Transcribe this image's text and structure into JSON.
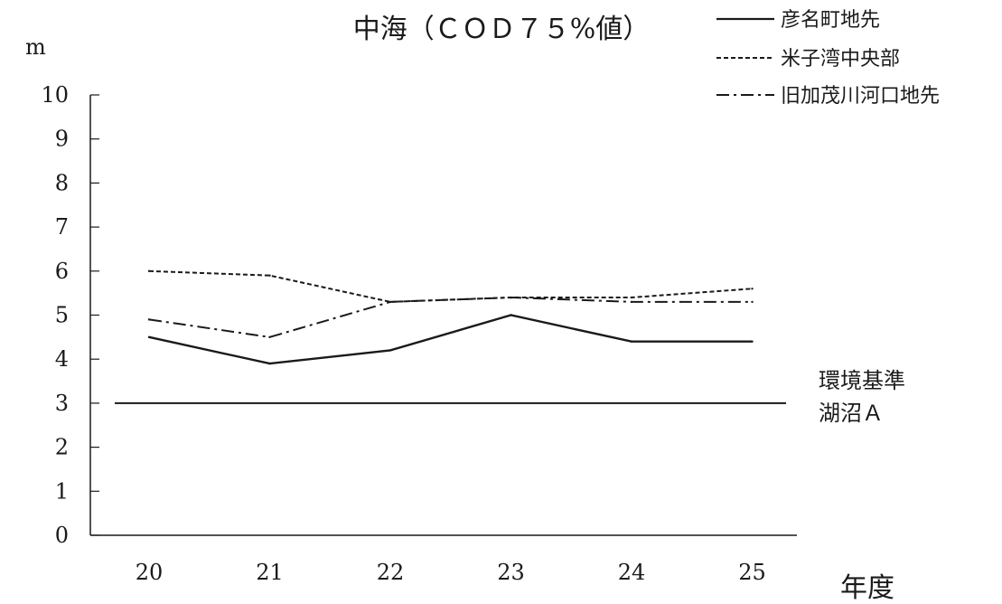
{
  "chart_data": {
    "type": "line",
    "title": "中海（ＣＯＤ７５%値）",
    "ylabel": "m",
    "xlabel": "年度",
    "categories": [
      "20",
      "21",
      "22",
      "23",
      "24",
      "25"
    ],
    "ylim": [
      0,
      10
    ],
    "yticks": [
      "0",
      "1",
      "2",
      "3",
      "4",
      "5",
      "6",
      "7",
      "8",
      "9",
      "10"
    ],
    "grid": false,
    "legend_position": "top-right",
    "series": [
      {
        "name": "彦名町地先",
        "values": [
          4.5,
          3.9,
          4.2,
          5.0,
          4.4,
          4.4
        ],
        "style": "solid"
      },
      {
        "name": "米子湾中央部",
        "values": [
          6.0,
          5.9,
          5.3,
          5.4,
          5.4,
          5.6
        ],
        "style": "dashed"
      },
      {
        "name": "旧加茂川河口地先",
        "values": [
          4.9,
          4.5,
          5.3,
          5.4,
          5.3,
          5.3
        ],
        "style": "dashdot"
      }
    ],
    "reference_line": {
      "value": 3,
      "label_lines": [
        "環境基準",
        "湖沼Ａ"
      ]
    },
    "line_color": "#1a1a1a"
  }
}
